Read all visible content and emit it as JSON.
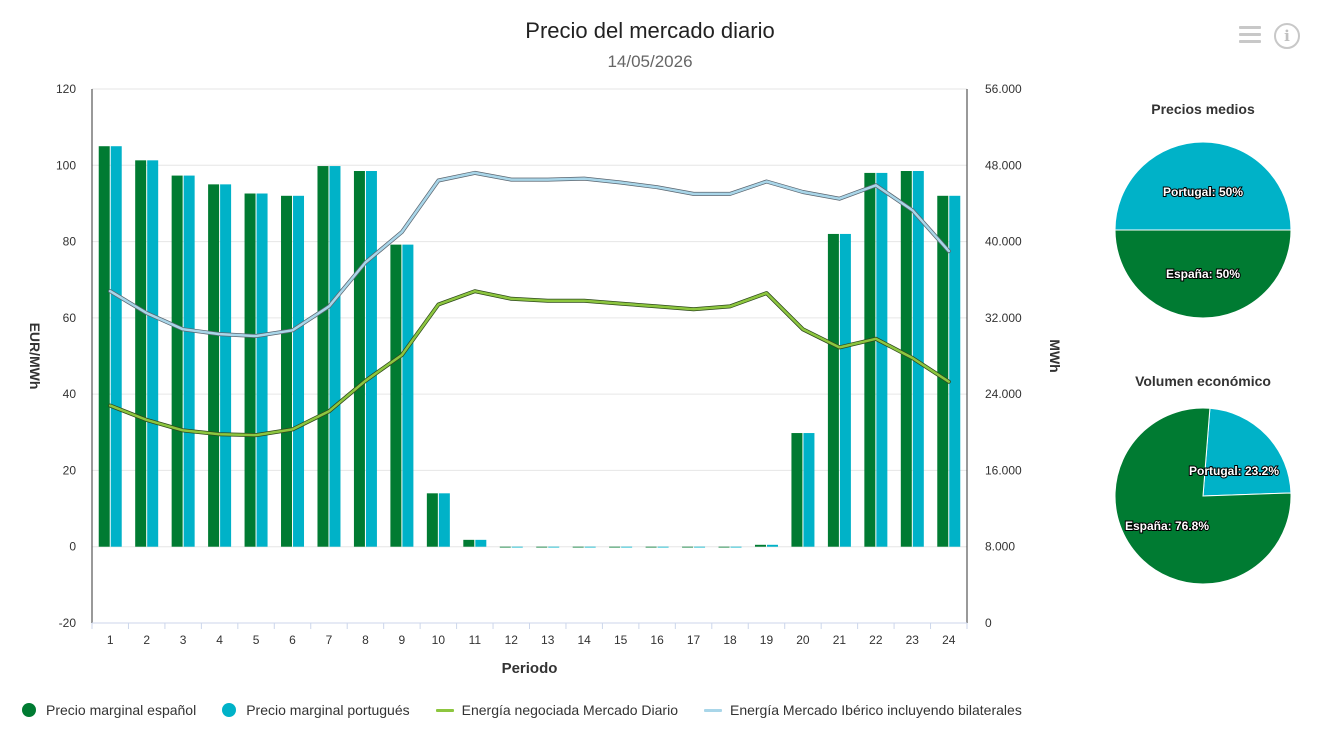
{
  "header": {
    "title": "Precio del mercado diario",
    "subtitle": "14/05/2026"
  },
  "colors": {
    "spain": "#007b32",
    "portugal": "#00b2c8",
    "energy_daily": "#8dc63f",
    "energy_iberian": "#a9d6e9"
  },
  "icons": {
    "menu": "hamburger-menu-icon",
    "info": "info-icon"
  },
  "chart_data": [
    {
      "type": "bar",
      "xlabel": "Periodo",
      "ylabel": "EUR/MWh",
      "y2label": "MWh",
      "ylim": [
        -20,
        120
      ],
      "y2lim": [
        0,
        56000
      ],
      "yticks": [
        "-20",
        "0",
        "20",
        "40",
        "60",
        "80",
        "100",
        "120"
      ],
      "y2ticks": [
        "0",
        "8.000",
        "16.000",
        "24.000",
        "32.000",
        "40.000",
        "48.000",
        "56.000"
      ],
      "grid": true,
      "legend_position": "bottom",
      "categories": [
        "1",
        "2",
        "3",
        "4",
        "5",
        "6",
        "7",
        "8",
        "9",
        "10",
        "11",
        "12",
        "13",
        "14",
        "15",
        "16",
        "17",
        "18",
        "19",
        "20",
        "21",
        "22",
        "23",
        "24"
      ],
      "series": [
        {
          "name": "Precio marginal español",
          "type": "bar",
          "axis": "left",
          "color": "#007b32",
          "values": [
            105,
            101.3,
            97.3,
            95,
            92.6,
            92,
            99.8,
            98.5,
            79.2,
            14,
            1.8,
            0,
            0,
            0,
            0,
            0,
            0,
            0,
            0.5,
            29.8,
            82,
            98,
            98.5,
            92
          ]
        },
        {
          "name": "Precio marginal portugués",
          "type": "bar",
          "axis": "left",
          "color": "#00b2c8",
          "values": [
            105,
            101.3,
            97.3,
            95,
            92.6,
            92,
            99.8,
            98.5,
            79.2,
            14,
            1.8,
            0,
            0,
            0,
            0,
            0,
            0,
            0,
            0.5,
            29.8,
            82,
            98,
            98.5,
            92
          ]
        },
        {
          "name": "Energía negociada Mercado Diario",
          "type": "line",
          "axis": "right",
          "color": "#8dc63f",
          "values": [
            22800,
            21300,
            20200,
            19800,
            19700,
            20300,
            22200,
            25400,
            28100,
            33400,
            34800,
            34000,
            33800,
            33800,
            33500,
            33200,
            32900,
            33200,
            34600,
            30800,
            28900,
            29800,
            27800,
            25300
          ]
        },
        {
          "name": "Energía Mercado Ibérico incluyendo bilaterales",
          "type": "line",
          "axis": "right",
          "color": "#a9d6e9",
          "values": [
            34800,
            32500,
            30800,
            30300,
            30100,
            30700,
            33200,
            37800,
            41000,
            46400,
            47200,
            46500,
            46500,
            46600,
            46200,
            45700,
            45000,
            45000,
            46300,
            45200,
            44500,
            45900,
            43300,
            39000
          ]
        }
      ]
    },
    {
      "type": "pie",
      "title": "Precios medios",
      "slices": [
        {
          "label": "Portugal",
          "value": 50,
          "display": "Portugal: 50%",
          "color": "#00b2c8"
        },
        {
          "label": "España",
          "value": 50,
          "display": "España: 50%",
          "color": "#007b32"
        }
      ]
    },
    {
      "type": "pie",
      "title": "Volumen económico",
      "slices": [
        {
          "label": "Portugal",
          "value": 23.2,
          "display": "Portugal: 23.2%",
          "color": "#00b2c8"
        },
        {
          "label": "España",
          "value": 76.8,
          "display": "España: 76.8%",
          "color": "#007b32"
        }
      ]
    }
  ]
}
